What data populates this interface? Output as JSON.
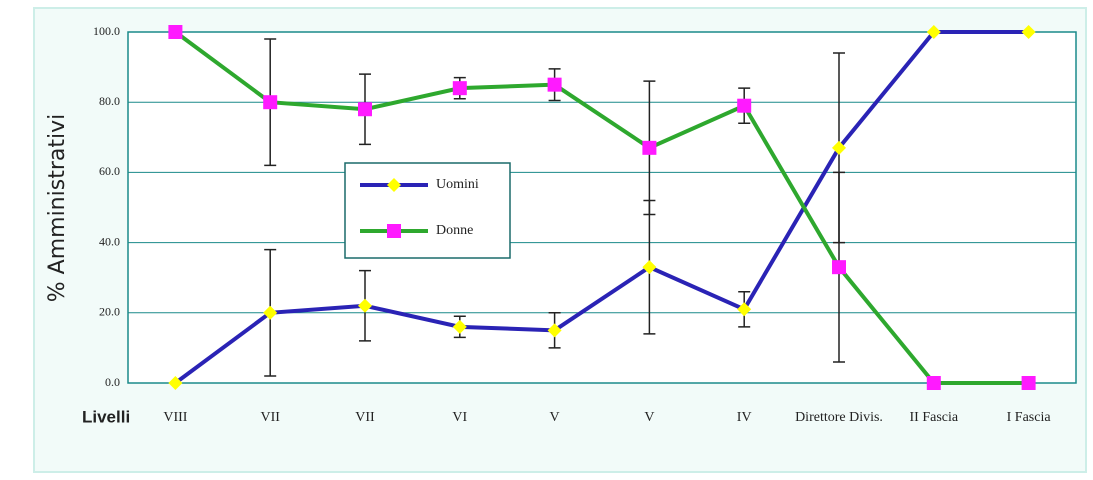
{
  "chart_data": {
    "type": "line",
    "y_label": "% Amministrativi",
    "x_label": "Livelli",
    "categories": [
      "VIII",
      "VII",
      "VII",
      "VI",
      "V",
      "V",
      "IV",
      "Direttore Divis.",
      "II Fascia",
      "I Fascia"
    ],
    "series": [
      {
        "name": "Uomini",
        "color": "#2a23b5",
        "marker_color": "#ffff00",
        "marker": "diamond",
        "values": [
          0,
          20,
          22,
          16,
          15,
          33,
          21,
          67,
          100,
          100
        ],
        "errors": [
          null,
          18,
          10,
          3,
          5,
          19,
          5,
          27,
          null,
          null
        ]
      },
      {
        "name": "Donne",
        "color": "#2ea82e",
        "marker_color": "#ff1aff",
        "marker": "square",
        "values": [
          100,
          80,
          78,
          84,
          85,
          67,
          79,
          33,
          0,
          0
        ],
        "errors": [
          null,
          18,
          10,
          3,
          4.5,
          19,
          5,
          27,
          null,
          null
        ]
      }
    ],
    "ylim": [
      0,
      100
    ],
    "yticks": [
      {
        "value": 0,
        "label": "0.0"
      },
      {
        "value": 20,
        "label": "20.0"
      },
      {
        "value": 40,
        "label": "40.0"
      },
      {
        "value": 60,
        "label": "60.0"
      },
      {
        "value": 80,
        "label": "80.0"
      },
      {
        "value": 100,
        "label": "100.0"
      }
    ],
    "grid": true
  }
}
